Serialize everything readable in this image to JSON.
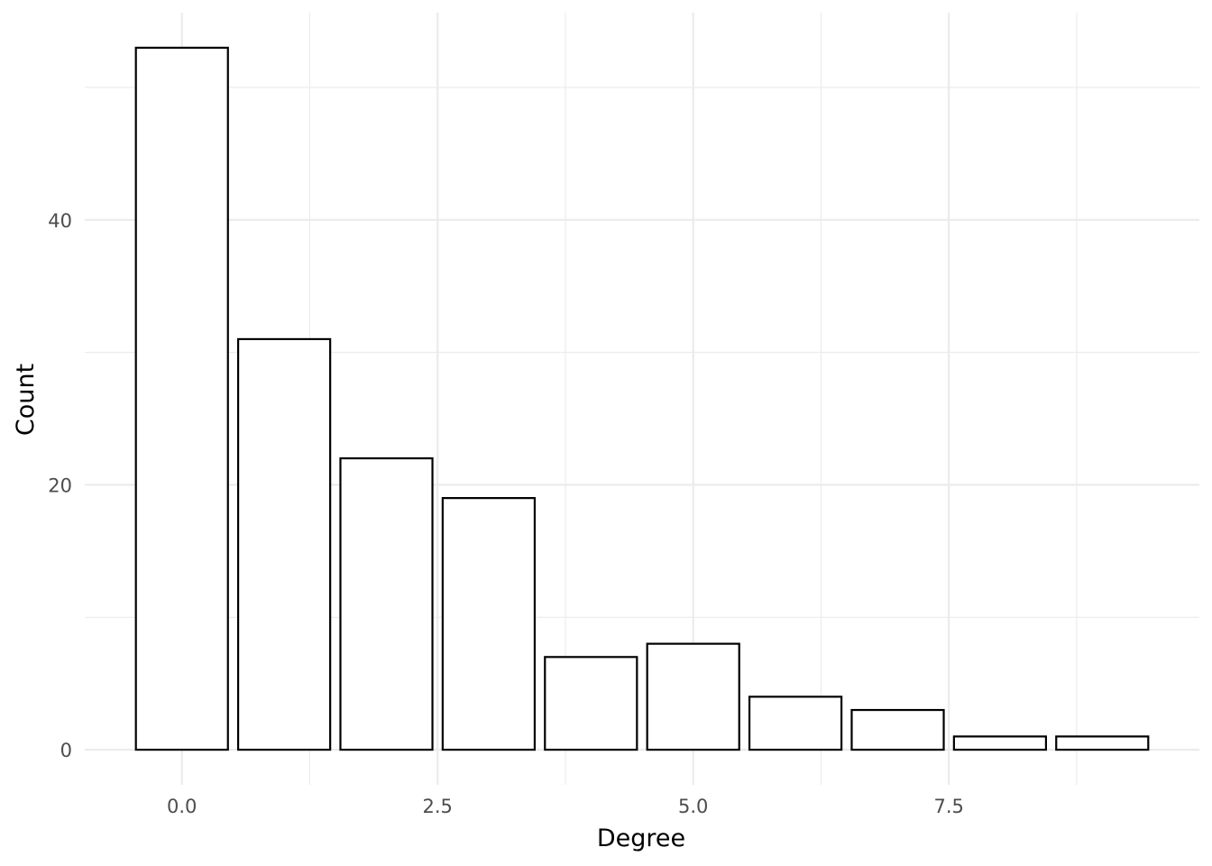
{
  "chart_data": {
    "type": "bar",
    "x": [
      0,
      1,
      2,
      3,
      4,
      5,
      6,
      7,
      8,
      9
    ],
    "values": [
      53,
      31,
      22,
      19,
      7,
      8,
      4,
      3,
      1,
      1
    ],
    "xlabel": "Degree",
    "ylabel": "Count",
    "xlim": [
      -0.95,
      9.95
    ],
    "ylim": [
      -2.65,
      55.65
    ],
    "x_ticks": [
      0,
      2.5,
      5,
      7.5
    ],
    "x_tick_labels": [
      "0.0",
      "2.5",
      "5.0",
      "7.5"
    ],
    "x_minor_ticks": [
      1.25,
      3.75,
      6.25,
      8.75
    ],
    "y_ticks": [
      0,
      20,
      40
    ],
    "y_tick_labels": [
      "0",
      "20",
      "40"
    ],
    "y_minor_ticks": [
      10,
      30,
      50
    ],
    "grid": true,
    "legend": "none",
    "colors": {
      "bar_fill": "#ffffff",
      "bar_outline": "#000000",
      "grid": "#ebebeb",
      "tick_text": "#4d4d4d"
    }
  }
}
